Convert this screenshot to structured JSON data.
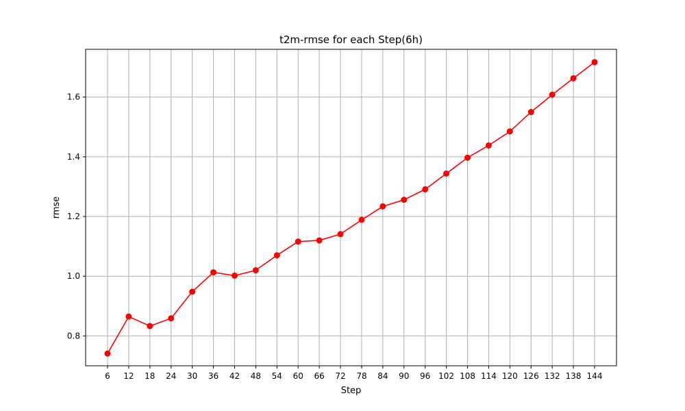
{
  "chart_data": {
    "type": "line",
    "title": "t2m-rmse for each Step(6h)",
    "xlabel": "Step",
    "ylabel": "rmse",
    "x": [
      6,
      12,
      18,
      24,
      30,
      36,
      42,
      48,
      54,
      60,
      66,
      72,
      78,
      84,
      90,
      96,
      102,
      108,
      114,
      120,
      126,
      132,
      138,
      144
    ],
    "series": [
      {
        "values": [
          0.741,
          0.865,
          0.833,
          0.859,
          0.948,
          1.013,
          1.002,
          1.02,
          1.07,
          1.116,
          1.12,
          1.141,
          1.189,
          1.234,
          1.256,
          1.291,
          1.344,
          1.397,
          1.438,
          1.485,
          1.55,
          1.608,
          1.663,
          1.717
        ],
        "color": "#ff0000",
        "marker": "circle"
      }
    ],
    "ylim": [
      0.7,
      1.76
    ],
    "yticks": [
      0.8,
      1.0,
      1.2,
      1.4,
      1.6
    ],
    "grid": true
  }
}
